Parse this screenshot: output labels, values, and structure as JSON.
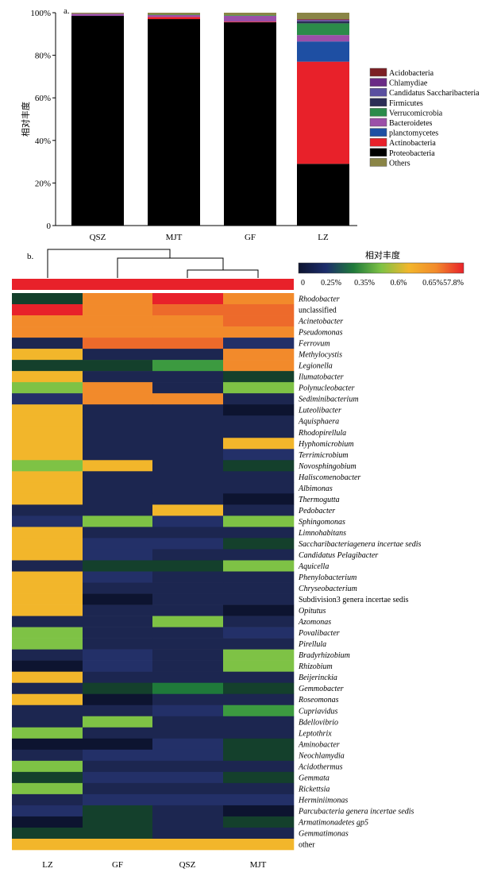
{
  "chart_data": [
    {
      "type": "bar",
      "stacked": true,
      "panel_label": "a.",
      "ylabel": "相对丰度",
      "ylim": [
        0,
        100
      ],
      "yticks": [
        "0",
        "20%",
        "40%",
        "60%",
        "80%",
        "100%"
      ],
      "categories": [
        "QSZ",
        "MJT",
        "GF",
        "LZ"
      ],
      "series": [
        {
          "name": "Proteobacteria",
          "color": "#000000",
          "values": [
            98.5,
            97.0,
            95.5,
            29.0
          ]
        },
        {
          "name": "Actinobacteria",
          "color": "#e8212a",
          "values": [
            0.0,
            1.0,
            0.3,
            48.0
          ]
        },
        {
          "name": "planctomycetes",
          "color": "#1e4fa3",
          "values": [
            0.0,
            0.0,
            0.0,
            9.5
          ]
        },
        {
          "name": "Bacteroidetes",
          "color": "#9b4fa8",
          "values": [
            1.0,
            0.9,
            2.7,
            3.0
          ]
        },
        {
          "name": "Verrucomicrobia",
          "color": "#2b8b4a",
          "values": [
            0.0,
            0.2,
            0.3,
            5.5
          ]
        },
        {
          "name": "Firmicutes",
          "color": "#2b2d55",
          "values": [
            0.0,
            0.0,
            0.0,
            1.0
          ]
        },
        {
          "name": "Candidatus Saccharibacteria",
          "color": "#5a4fa0",
          "values": [
            0.0,
            0.0,
            0.0,
            0.4
          ]
        },
        {
          "name": "Chlamydiae",
          "color": "#6a2b86",
          "values": [
            0.0,
            0.0,
            0.0,
            0.3
          ]
        },
        {
          "name": "Acidobacteria",
          "color": "#7c1f24",
          "values": [
            0.0,
            0.0,
            0.0,
            0.3
          ]
        },
        {
          "name": "Others",
          "color": "#8a8546",
          "values": [
            0.5,
            0.9,
            1.2,
            3.0
          ]
        }
      ],
      "legend_order": [
        "Acidobacteria",
        "Chlamydiae",
        "Candidatus Saccharibacteria",
        "Firmicutes",
        "Verrucomicrobia",
        "Bacteroidetes",
        "planctomycetes",
        "Actinobacteria",
        "Proteobacteria",
        "Others"
      ],
      "legend_position": "right"
    },
    {
      "type": "heatmap",
      "panel_label": "b.",
      "title": "相对丰度",
      "columns": [
        "LZ",
        "GF",
        "QSZ",
        "MJT"
      ],
      "dendrogram": "((QSZ, MJT), GF), LZ",
      "scale_labels": [
        "0",
        "0.25%",
        "0.35%",
        "0.6%",
        "0.65%",
        "57.8%"
      ],
      "scale_colors": [
        "#0d1430",
        "#1c2d6b",
        "#1f7a3a",
        "#7ec245",
        "#f2b62b",
        "#f28a2b",
        "#e8212a"
      ],
      "value_note": "cell values are color-scale levels 0 (lowest) to 10 (highest)",
      "header_row": [
        10,
        10,
        10,
        10
      ],
      "rows": [
        {
          "name": "Rhodobacter",
          "italic": true,
          "values": [
            3,
            8,
            10,
            8
          ]
        },
        {
          "name": "unclassified",
          "italic": false,
          "values": [
            10,
            8,
            9,
            9
          ]
        },
        {
          "name": "Acinetobacter",
          "italic": true,
          "values": [
            8,
            8,
            8,
            9
          ]
        },
        {
          "name": "Pseudomonas",
          "italic": true,
          "values": [
            8,
            8,
            8,
            8
          ]
        },
        {
          "name": "Ferrovum",
          "italic": true,
          "values": [
            1,
            9,
            9,
            2
          ]
        },
        {
          "name": "Methylocystis",
          "italic": true,
          "values": [
            7,
            1,
            1,
            8
          ]
        },
        {
          "name": "Legionella",
          "italic": true,
          "values": [
            3,
            3,
            5,
            8
          ]
        },
        {
          "name": "Ilumatobacter",
          "italic": true,
          "values": [
            7,
            1,
            1,
            3
          ]
        },
        {
          "name": "Polynucleobacter",
          "italic": true,
          "values": [
            6,
            8,
            1,
            6
          ]
        },
        {
          "name": "Sediminibacterium",
          "italic": true,
          "values": [
            2,
            8,
            8,
            1
          ]
        },
        {
          "name": "Luteolibacter",
          "italic": true,
          "values": [
            7,
            1,
            1,
            0
          ]
        },
        {
          "name": "Aquisphaera",
          "italic": true,
          "values": [
            7,
            1,
            1,
            1
          ]
        },
        {
          "name": "Rhodopirellula",
          "italic": true,
          "values": [
            7,
            1,
            1,
            1
          ]
        },
        {
          "name": "Hyphomicrobium",
          "italic": true,
          "values": [
            7,
            1,
            1,
            7
          ]
        },
        {
          "name": "Terrimicrobium",
          "italic": true,
          "values": [
            7,
            1,
            1,
            2
          ]
        },
        {
          "name": "Novosphingobium",
          "italic": true,
          "values": [
            6,
            7,
            1,
            3
          ]
        },
        {
          "name": "Haliscomenobacter",
          "italic": true,
          "values": [
            7,
            1,
            1,
            1
          ]
        },
        {
          "name": "Albimonas",
          "italic": true,
          "values": [
            7,
            1,
            1,
            1
          ]
        },
        {
          "name": "Thermogutta",
          "italic": true,
          "values": [
            7,
            1,
            1,
            0
          ]
        },
        {
          "name": "Pedobacter",
          "italic": true,
          "values": [
            1,
            1,
            7,
            1
          ]
        },
        {
          "name": "Sphingomonas",
          "italic": true,
          "values": [
            2,
            6,
            2,
            6
          ]
        },
        {
          "name": "Limnohabitans",
          "italic": true,
          "values": [
            7,
            1,
            1,
            1
          ]
        },
        {
          "name": "Saccharibacteriagenera incertae sedis",
          "italic": true,
          "values": [
            7,
            2,
            2,
            3
          ]
        },
        {
          "name": "Candidatus Pelagibacter",
          "italic": true,
          "values": [
            7,
            2,
            1,
            1
          ]
        },
        {
          "name": "Aquicella",
          "italic": true,
          "values": [
            1,
            3,
            3,
            6
          ]
        },
        {
          "name": "Phenylobacterium",
          "italic": true,
          "values": [
            7,
            2,
            1,
            1
          ]
        },
        {
          "name": "Chryseobacterium",
          "italic": true,
          "values": [
            7,
            1,
            1,
            1
          ]
        },
        {
          "name": "Subdivision3 genera incertae sedis",
          "italic": false,
          "values": [
            7,
            0,
            1,
            1
          ]
        },
        {
          "name": "Opitutus",
          "italic": true,
          "values": [
            7,
            1,
            1,
            0
          ]
        },
        {
          "name": "Azomonas",
          "italic": true,
          "values": [
            1,
            1,
            6,
            1
          ]
        },
        {
          "name": "Povalibacter",
          "italic": true,
          "values": [
            6,
            1,
            1,
            2
          ]
        },
        {
          "name": "Pirellula",
          "italic": true,
          "values": [
            6,
            1,
            1,
            1
          ]
        },
        {
          "name": "Bradyrhizobium",
          "italic": true,
          "values": [
            1,
            2,
            1,
            6
          ]
        },
        {
          "name": "Rhizobium",
          "italic": true,
          "values": [
            0,
            2,
            1,
            6
          ]
        },
        {
          "name": "Beijerinckia",
          "italic": true,
          "values": [
            7,
            1,
            1,
            1
          ]
        },
        {
          "name": "Gemmobacter",
          "italic": true,
          "values": [
            1,
            3,
            4,
            3
          ]
        },
        {
          "name": "Roseomonas",
          "italic": true,
          "values": [
            7,
            0,
            1,
            1
          ]
        },
        {
          "name": "Cupriavidus",
          "italic": true,
          "values": [
            1,
            1,
            2,
            5
          ]
        },
        {
          "name": "Bdellovibrio",
          "italic": true,
          "values": [
            1,
            6,
            1,
            1
          ]
        },
        {
          "name": "Leptothrix",
          "italic": true,
          "values": [
            6,
            1,
            1,
            1
          ]
        },
        {
          "name": "Aminobacter",
          "italic": true,
          "values": [
            0,
            0,
            2,
            3
          ]
        },
        {
          "name": "Neochlamydia",
          "italic": true,
          "values": [
            1,
            2,
            2,
            3
          ]
        },
        {
          "name": "Acidothermus",
          "italic": true,
          "values": [
            6,
            1,
            1,
            1
          ]
        },
        {
          "name": "Gemmata",
          "italic": true,
          "values": [
            3,
            2,
            2,
            3
          ]
        },
        {
          "name": "Rickettsia",
          "italic": true,
          "values": [
            6,
            1,
            1,
            1
          ]
        },
        {
          "name": "Herminiimonas",
          "italic": true,
          "values": [
            1,
            2,
            2,
            2
          ]
        },
        {
          "name": "Parcubacteria genera incertae sedis",
          "italic": true,
          "values": [
            2,
            3,
            1,
            0
          ]
        },
        {
          "name": "Armatimonadetes gp5",
          "italic": true,
          "values": [
            0,
            3,
            1,
            3
          ]
        },
        {
          "name": "Gemmatimonas",
          "italic": true,
          "values": [
            3,
            3,
            1,
            1
          ]
        },
        {
          "name": "other",
          "italic": false,
          "values": [
            7,
            7,
            7,
            7
          ]
        }
      ]
    }
  ]
}
